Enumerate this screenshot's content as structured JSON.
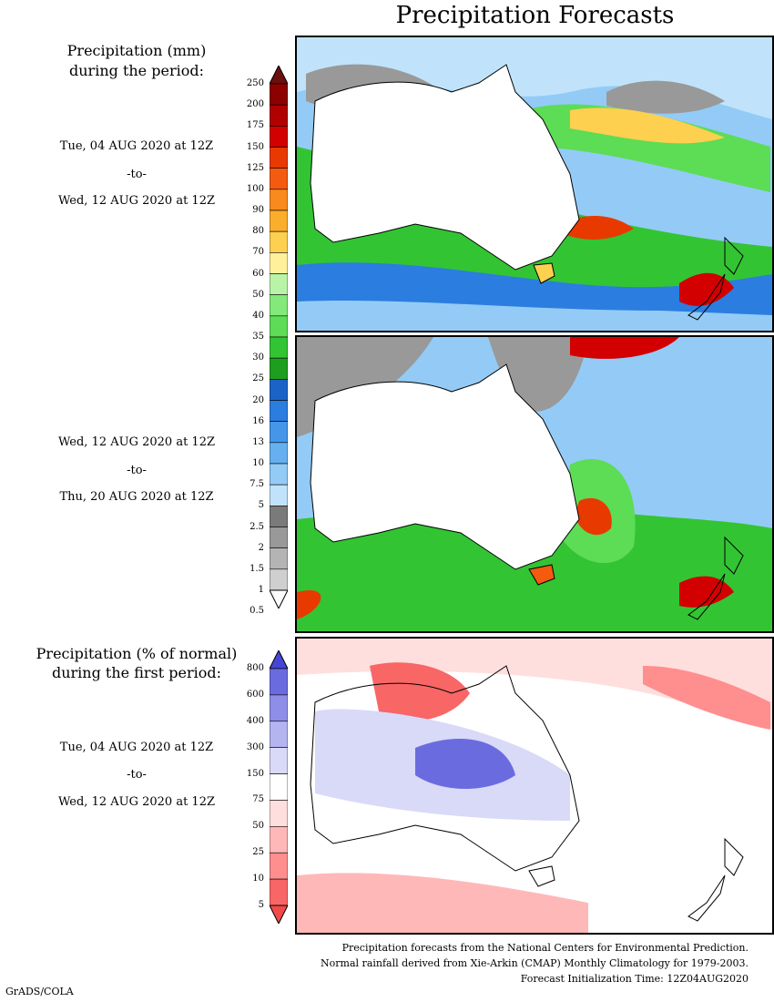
{
  "title": "Precipitation Forecasts",
  "legend_mm": {
    "heading_1": "Precipitation (mm)",
    "heading_2": "during the period:",
    "levels": [
      "250",
      "200",
      "175",
      "150",
      "125",
      "100",
      "90",
      "80",
      "70",
      "60",
      "50",
      "40",
      "35",
      "30",
      "25",
      "20",
      "16",
      "13",
      "10",
      "7.5",
      "5",
      "2.5",
      "2",
      "1.5",
      "1",
      "0.5"
    ],
    "colors": [
      "#6b0f0f",
      "#8c0000",
      "#b00000",
      "#d20000",
      "#e83a00",
      "#f45a10",
      "#f98a1c",
      "#fbad2c",
      "#fdd050",
      "#fff19a",
      "#b9f3a8",
      "#82e97a",
      "#5ddc55",
      "#33c434",
      "#1e9e1e",
      "#1c63c7",
      "#2b7de0",
      "#4596e8",
      "#66b0f0",
      "#93cbf6",
      "#c0e3fb",
      "#7a7a7a",
      "#999999",
      "#b4b4b4",
      "#cfcfcf",
      "#ffffff"
    ]
  },
  "legend_pct": {
    "heading_1": "Precipitation (% of normal)",
    "heading_2": "during the first period:",
    "levels": [
      "800",
      "600",
      "400",
      "300",
      "150",
      "75",
      "50",
      "25",
      "10",
      "5"
    ],
    "colors": [
      "#4646d6",
      "#6b6be0",
      "#8e8ee8",
      "#b4b4f0",
      "#d9d9f8",
      "#ffffff",
      "#ffdede",
      "#ffb8b8",
      "#ff8e8e",
      "#f86666",
      "#f24a4a"
    ]
  },
  "period1": {
    "start": "Tue, 04 AUG 2020 at 12Z",
    "to": "-to-",
    "end": "Wed, 12 AUG 2020 at 12Z"
  },
  "period2": {
    "start": "Wed, 12 AUG 2020 at 12Z",
    "to": "-to-",
    "end": "Thu, 20 AUG 2020 at 12Z"
  },
  "period3": {
    "start": "Tue, 04 AUG 2020 at 12Z",
    "to": "-to-",
    "end": "Wed, 12 AUG 2020 at 12Z"
  },
  "footer": {
    "line1": "Precipitation forecasts from the National Centers for Environmental Prediction.",
    "line2": "Normal rainfall derived from Xie-Arkin (CMAP) Monthly Climatology for 1979-2003.",
    "line3": "Forecast Initialization Time: 12Z04AUG2020"
  },
  "credit": "GrADS/COLA"
}
